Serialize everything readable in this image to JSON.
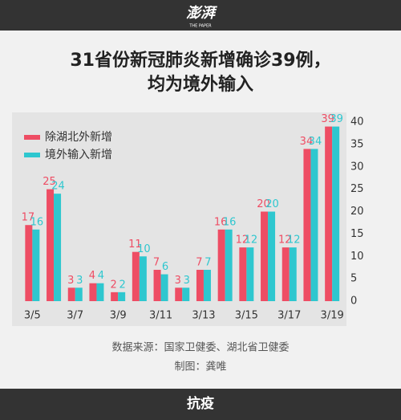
{
  "header": {
    "logo": "澎湃",
    "logo_sub": "THE PAPER"
  },
  "chart_data": {
    "type": "bar",
    "title": [
      "31省份新冠肺炎新增确诊39例，",
      "均为境外输入"
    ],
    "categories": [
      "3/5",
      null,
      "3/7",
      null,
      "3/9",
      null,
      "3/11",
      null,
      "3/13",
      null,
      "3/15",
      null,
      "3/17",
      null,
      "3/19"
    ],
    "series": [
      {
        "name": "除湖北外新增",
        "color": "#ee4d64",
        "values": [
          17,
          25,
          3,
          4,
          2,
          11,
          7,
          3,
          7,
          16,
          12,
          20,
          12,
          34,
          39
        ]
      },
      {
        "name": "境外输入新增",
        "color": "#2ec7cf",
        "values": [
          16,
          24,
          3,
          4,
          2,
          10,
          6,
          3,
          7,
          16,
          12,
          20,
          12,
          34,
          39
        ]
      }
    ],
    "ylim": [
      0,
      40
    ],
    "yticks": [
      0,
      5,
      10,
      15,
      20,
      25,
      30,
      35,
      40
    ],
    "grid": false,
    "legend": "top-left",
    "source": "数据来源：国家卫健委、湖北省卫健委",
    "credit": "制图：龚唯"
  },
  "footer": {
    "tag": "抗疫"
  }
}
